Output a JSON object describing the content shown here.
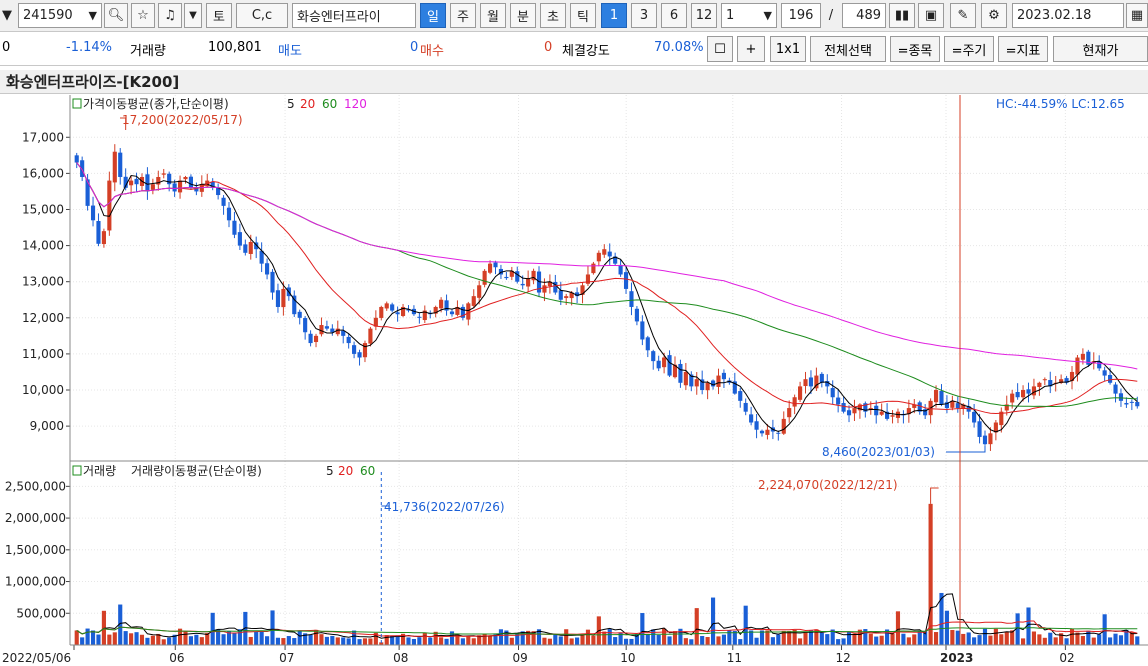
{
  "toolbar": {
    "code": "241590",
    "company": "화승엔터프라이",
    "btn_to": "토",
    "btn_cc": "C,c",
    "periods": [
      "일",
      "주",
      "월",
      "분",
      "초",
      "틱"
    ],
    "nums": [
      "1",
      "3",
      "6",
      "12"
    ],
    "interval": "1",
    "count_shown": "196",
    "slash": "/",
    "count_total": "489",
    "date": "2023.02.18"
  },
  "quote": {
    "price": "0",
    "change_pct": "-1.14%",
    "volume_label": "거래량",
    "volume": "100,801",
    "ask_label": "매도",
    "ask": "0",
    "bid_label": "매수",
    "bid": "0",
    "strength_label": "체결강도",
    "strength": "70.08%",
    "buttons": [
      "+",
      "1x1",
      "전체선택",
      "=종목",
      "=주기",
      "=지표",
      "현재가"
    ]
  },
  "chart_title": "화승엔터프라이즈-[K200]",
  "colors": {
    "up": "#d43f26",
    "down": "#1a5fd6",
    "ma5": "#000000",
    "ma20": "#e02020",
    "ma60": "#1e8c1e",
    "ma120": "#e020e0",
    "vline": "#d43f26"
  },
  "chart_data": [
    {
      "type": "candlestick",
      "legend_title": "가격이동평균(종가,단순이평)",
      "legend_periods": [
        "5",
        "20",
        "60",
        "120"
      ],
      "yticks": [
        "17,000",
        "16,000",
        "15,000",
        "14,000",
        "13,000",
        "12,000",
        "11,000",
        "10,000",
        "9,000"
      ],
      "ylim": [
        8200,
        17700
      ],
      "hc_lc": "HC:-44.59% LC:12.65",
      "annotations": {
        "max": "17,200(2022/05/17)",
        "min": "8,460(2023/01/03)"
      },
      "close_series": [
        16300,
        15900,
        15100,
        14700,
        14050,
        14400,
        15800,
        16600,
        15900,
        15600,
        15800,
        15700,
        15900,
        15500,
        15700,
        15900,
        16000,
        15700,
        15500,
        15800,
        15900,
        15600,
        15500,
        15700,
        15800,
        15600,
        15400,
        15100,
        14700,
        14300,
        14000,
        13800,
        14100,
        13900,
        13500,
        13200,
        12700,
        12300,
        12800,
        12600,
        12100,
        12000,
        11600,
        11300,
        11500,
        11800,
        11700,
        11600,
        11700,
        11500,
        11300,
        11000,
        10900,
        11300,
        11700,
        12000,
        12300,
        12400,
        12200,
        12100,
        12300,
        12200,
        12100,
        12000,
        12200,
        12100,
        12300,
        12500,
        12200,
        12100,
        12300,
        12000,
        12400,
        12600,
        12900,
        13300,
        13500,
        13400,
        13200,
        13100,
        13300,
        13000,
        12900,
        13100,
        13300,
        12700,
        12900,
        13000,
        12700,
        12500,
        12600,
        12700,
        12600,
        12900,
        13200,
        13500,
        13800,
        13900,
        13700,
        13500,
        13200,
        12800,
        12300,
        11900,
        11400,
        11100,
        10800,
        10600,
        10900,
        10400,
        10700,
        10200,
        10500,
        10100,
        10300,
        10000,
        10200,
        10100,
        10400,
        10300,
        10200,
        9900,
        9700,
        9400,
        9100,
        8900,
        8800,
        8900,
        8850,
        8800,
        9200,
        9500,
        9800,
        10100,
        10300,
        10100,
        10400,
        10200,
        10100,
        9800,
        9600,
        9400,
        9300,
        9500,
        9600,
        9400,
        9500,
        9300,
        9400,
        9200,
        9300,
        9400,
        9300,
        9500,
        9600,
        9400,
        9300,
        9700,
        10000,
        9600,
        9500,
        9700,
        9500,
        9600,
        9400,
        9100,
        8700,
        8500,
        8800,
        9100,
        9400,
        9600,
        9900,
        9800,
        10000,
        9900,
        10100,
        10200,
        10300,
        10100,
        10200,
        10300,
        10200,
        10500,
        10900,
        11000,
        10700,
        10800,
        10600,
        10400,
        10200,
        9900,
        9700,
        9600,
        9650,
        9550
      ]
    },
    {
      "type": "bar",
      "legend_title_a": "거래량",
      "legend_title_b": "거래량이동평균(단순이평)",
      "legend_periods": [
        "5",
        "20",
        "60"
      ],
      "yticks": [
        "2,500,000",
        "2,000,000",
        "1,500,000",
        "1,000,000",
        "500,000"
      ],
      "ylim": [
        0,
        2600000
      ],
      "annotations": {
        "max": "2,224,070(2022/12/21)",
        "min": "41,736(2022/07/26)"
      },
      "xticks": [
        "2022/05/06",
        "06",
        "07",
        "08",
        "09",
        "10",
        "11",
        "12",
        "2023",
        "02"
      ]
    }
  ]
}
